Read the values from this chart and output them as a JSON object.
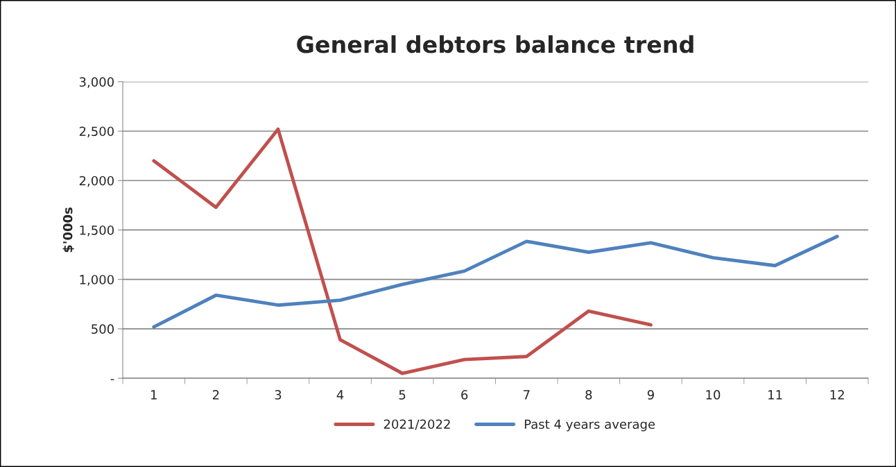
{
  "chart_data": {
    "type": "line",
    "title": "General debtors balance trend",
    "ylabel": "$'000s",
    "categories": [
      "1",
      "2",
      "3",
      "4",
      "5",
      "6",
      "7",
      "8",
      "9",
      "10",
      "11",
      "12"
    ],
    "series": [
      {
        "name": "2021/2022",
        "color": "#c0504d",
        "values": [
          2200,
          1730,
          2520,
          390,
          50,
          190,
          220,
          680,
          540,
          null,
          null,
          null
        ]
      },
      {
        "name": "Past 4 years average",
        "color": "#4f81bd",
        "values": [
          520,
          840,
          740,
          790,
          950,
          1085,
          1385,
          1275,
          1370,
          1220,
          1140,
          1435
        ]
      }
    ],
    "ylim": [
      0,
      3000
    ],
    "yticks": [
      {
        "value": 0,
        "label": "-"
      },
      {
        "value": 500,
        "label": "500"
      },
      {
        "value": 1000,
        "label": "1,000"
      },
      {
        "value": 1500,
        "label": "1,500"
      },
      {
        "value": 2000,
        "label": "2,000"
      },
      {
        "value": 2500,
        "label": "2,500"
      },
      {
        "value": 3000,
        "label": "3,000"
      }
    ],
    "grid": "y",
    "legend": "bottom",
    "marker": "none",
    "line_style": "solid"
  }
}
